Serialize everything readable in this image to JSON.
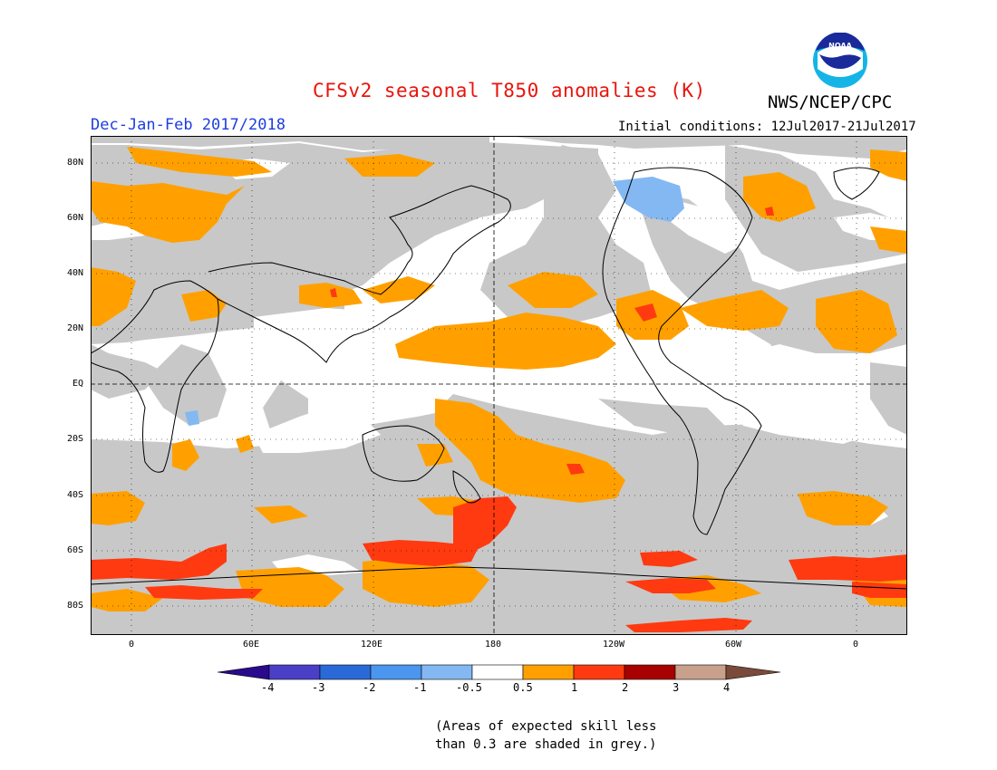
{
  "title": "CFSv2 seasonal T850 anomalies (K)",
  "organization": "NWS/NCEP/CPC",
  "logo_text": "NOAA",
  "season": "Dec-Jan-Feb 2017/2018",
  "initial_conditions": "Initial conditions: 12Jul2017-21Jul2017",
  "map": {
    "lat_labels": [
      "80N",
      "60N",
      "40N",
      "20N",
      "EQ",
      "20S",
      "40S",
      "60S",
      "80S"
    ],
    "lon_labels": [
      "0",
      "60E",
      "120E",
      "180",
      "120W",
      "60W",
      "0"
    ]
  },
  "legend": {
    "labels": [
      "-4",
      "-3",
      "-2",
      "-1",
      "-0.5",
      "0.5",
      "1",
      "2",
      "3",
      "4"
    ],
    "colors": {
      "below_-4": "#2a0a8c",
      "-4_-3": "#4a40c8",
      "-3_-2": "#2a6ad8",
      "-2_-1": "#4b96ee",
      "-1_-0.5": "#84b8f2",
      "-0.5_0.5": "#ffffff",
      "0.5_1": "#ffa000",
      "1_2": "#ff3a10",
      "2_3": "#a80000",
      "3_4": "#c8a08c",
      "above_4": "#7a4a3a"
    }
  },
  "colors": {
    "grey_low_skill": "#c8c8c8",
    "orange": "#ffa000",
    "red": "#ff3a10",
    "light_blue": "#84b8f2",
    "title_red": "#e8140c",
    "season_blue": "#1c3ee0"
  },
  "note_lines": [
    "(Areas of expected skill less",
    "than 0.3 are shaded in grey.)"
  ]
}
